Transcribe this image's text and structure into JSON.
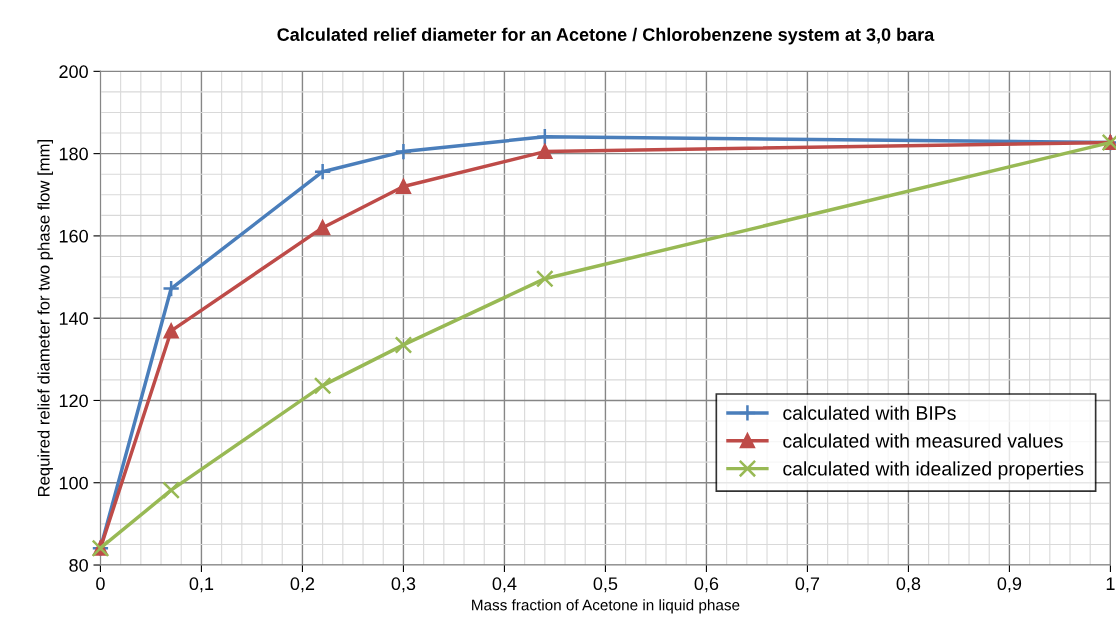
{
  "chart_data": {
    "type": "line",
    "title": "Calculated relief diameter for an Acetone / Chlorobenzene system at 3,0 bara",
    "xlabel": "Mass fraction of Acetone in liquid phase",
    "ylabel": "Required relief diameter for two phase flow [mm]",
    "x": [
      0,
      0.07,
      0.22,
      0.3,
      0.44,
      1
    ],
    "series": [
      {
        "name": "calculated with BIPs",
        "color": "#4a7ebb",
        "marker": "plus",
        "values": [
          84.1,
          147.2,
          175.6,
          180.5,
          184.1,
          182.7
        ]
      },
      {
        "name": "calculated with measured values",
        "color": "#be4b48",
        "marker": "triangle",
        "values": [
          84.1,
          136.9,
          162,
          172,
          180.5,
          182.7
        ]
      },
      {
        "name": "calculated with idealized properties",
        "color": "#98b954",
        "marker": "cross",
        "values": [
          84.1,
          98.2,
          123.6,
          133.5,
          149.6,
          182.7
        ]
      }
    ],
    "xlim": [
      0,
      1
    ],
    "xticks": [
      {
        "value": 0,
        "label": "0"
      },
      {
        "value": 0.1,
        "label": "0,1"
      },
      {
        "value": 0.2,
        "label": "0,2"
      },
      {
        "value": 0.3,
        "label": "0,3"
      },
      {
        "value": 0.4,
        "label": "0,4"
      },
      {
        "value": 0.5,
        "label": "0,5"
      },
      {
        "value": 0.6,
        "label": "0,6"
      },
      {
        "value": 0.7,
        "label": "0,7"
      },
      {
        "value": 0.8,
        "label": "0,8"
      },
      {
        "value": 0.9,
        "label": "0,9"
      },
      {
        "value": 1,
        "label": "1"
      }
    ],
    "ylim": [
      80,
      200
    ],
    "yticks": [
      80,
      100,
      120,
      140,
      160,
      180,
      200
    ],
    "grid": true,
    "legend": "bottom right",
    "line_style": "solid"
  }
}
